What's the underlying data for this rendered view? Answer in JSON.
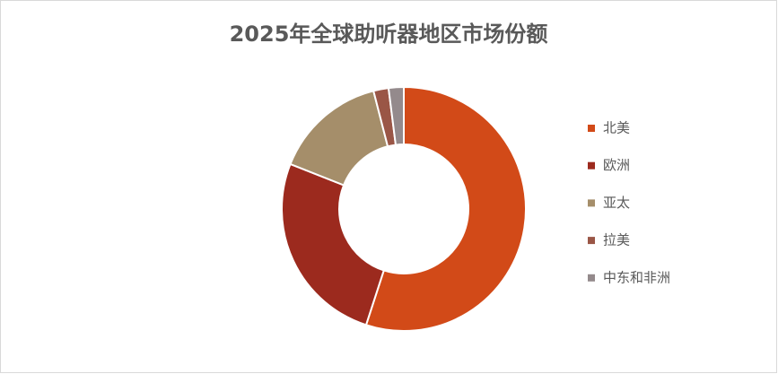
{
  "chart_data": {
    "type": "donut",
    "title": "2025年全球助听器地区市场份额",
    "categories": [
      "北美",
      "欧洲",
      "亚太",
      "拉美",
      "中东和非洲"
    ],
    "values": [
      55,
      26,
      15,
      2,
      2
    ],
    "colors": [
      "#d24a18",
      "#9c2a1e",
      "#a58e6a",
      "#9a5646",
      "#948a8c"
    ],
    "legend": "right"
  }
}
